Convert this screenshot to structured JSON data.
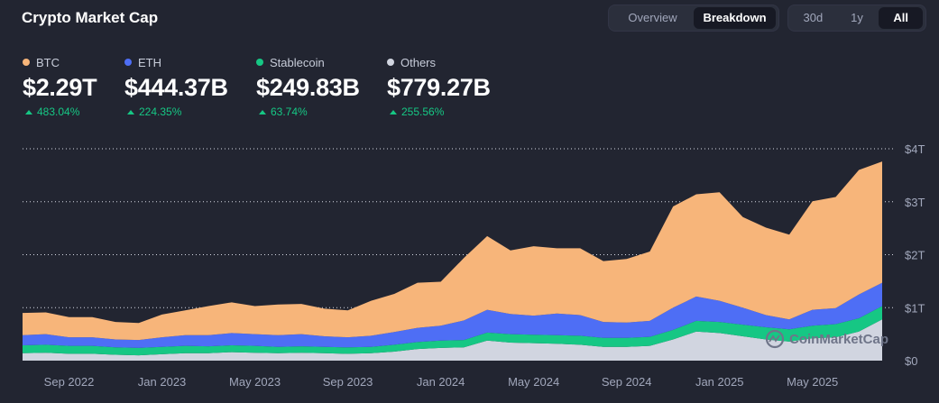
{
  "header": {
    "title": "Crypto Market Cap",
    "view_tabs": [
      {
        "label": "Overview",
        "active": false
      },
      {
        "label": "Breakdown",
        "active": true
      }
    ],
    "range_tabs": [
      {
        "label": "30d",
        "active": false
      },
      {
        "label": "1y",
        "active": false
      },
      {
        "label": "All",
        "active": true
      }
    ]
  },
  "stats": [
    {
      "name": "BTC",
      "value": "$2.29T",
      "change": "483.04%",
      "color": "#f7b57a"
    },
    {
      "name": "ETH",
      "value": "$444.37B",
      "change": "224.35%",
      "color": "#4e6ef5"
    },
    {
      "name": "Stablecoin",
      "value": "$249.83B",
      "change": "63.74%",
      "color": "#16c784"
    },
    {
      "name": "Others",
      "value": "$779.27B",
      "change": "255.56%",
      "color": "#d1d5e0"
    }
  ],
  "watermark": "CoinMarketCap",
  "chart_data": {
    "type": "area",
    "stacked": true,
    "x_ticks": [
      "Sep 2022",
      "Jan 2023",
      "May 2023",
      "Sep 2023",
      "Jan 2024",
      "May 2024",
      "Sep 2024",
      "Jan 2025",
      "May 2025"
    ],
    "y_ticks": [
      "$0",
      "$1T",
      "$2T",
      "$3T",
      "$4T"
    ],
    "ylim": [
      0,
      4
    ],
    "y_unit": "T",
    "grid": "horizontal-dotted",
    "x": [
      "2022-07",
      "2022-08",
      "2022-09",
      "2022-10",
      "2022-11",
      "2022-12",
      "2023-01",
      "2023-02",
      "2023-03",
      "2023-04",
      "2023-05",
      "2023-06",
      "2023-07",
      "2023-08",
      "2023-09",
      "2023-10",
      "2023-11",
      "2023-12",
      "2024-01",
      "2024-02",
      "2024-03",
      "2024-04",
      "2024-05",
      "2024-06",
      "2024-07",
      "2024-08",
      "2024-09",
      "2024-10",
      "2024-11",
      "2024-12",
      "2025-01",
      "2025-02",
      "2025-03",
      "2025-04",
      "2025-05",
      "2025-06",
      "2025-07",
      "2025-08"
    ],
    "series": [
      {
        "name": "Others",
        "color": "#d1d5e0",
        "values": [
          0.14,
          0.15,
          0.13,
          0.13,
          0.11,
          0.1,
          0.12,
          0.14,
          0.14,
          0.16,
          0.15,
          0.14,
          0.15,
          0.14,
          0.13,
          0.14,
          0.17,
          0.22,
          0.24,
          0.25,
          0.38,
          0.34,
          0.33,
          0.32,
          0.3,
          0.26,
          0.26,
          0.28,
          0.4,
          0.55,
          0.52,
          0.46,
          0.4,
          0.36,
          0.42,
          0.44,
          0.55,
          0.78
        ]
      },
      {
        "name": "Stablecoin",
        "color": "#16c784",
        "values": [
          0.15,
          0.15,
          0.15,
          0.15,
          0.14,
          0.14,
          0.14,
          0.14,
          0.13,
          0.13,
          0.13,
          0.12,
          0.12,
          0.12,
          0.12,
          0.12,
          0.13,
          0.13,
          0.14,
          0.14,
          0.15,
          0.16,
          0.16,
          0.16,
          0.17,
          0.17,
          0.17,
          0.17,
          0.18,
          0.2,
          0.21,
          0.22,
          0.23,
          0.23,
          0.24,
          0.25,
          0.25,
          0.25
        ]
      },
      {
        "name": "ETH",
        "color": "#4e6ef5",
        "values": [
          0.19,
          0.2,
          0.16,
          0.16,
          0.15,
          0.15,
          0.18,
          0.2,
          0.21,
          0.23,
          0.22,
          0.22,
          0.23,
          0.2,
          0.19,
          0.21,
          0.24,
          0.27,
          0.28,
          0.37,
          0.43,
          0.38,
          0.36,
          0.41,
          0.39,
          0.3,
          0.29,
          0.3,
          0.42,
          0.46,
          0.4,
          0.32,
          0.23,
          0.19,
          0.3,
          0.3,
          0.45,
          0.44
        ]
      },
      {
        "name": "BTC",
        "color": "#f7b57a",
        "values": [
          0.42,
          0.41,
          0.38,
          0.38,
          0.33,
          0.32,
          0.43,
          0.47,
          0.55,
          0.58,
          0.53,
          0.58,
          0.57,
          0.52,
          0.51,
          0.66,
          0.72,
          0.85,
          0.83,
          1.18,
          1.39,
          1.2,
          1.31,
          1.23,
          1.26,
          1.15,
          1.2,
          1.31,
          1.91,
          1.93,
          2.05,
          1.71,
          1.65,
          1.6,
          2.05,
          2.1,
          2.35,
          2.29
        ]
      }
    ]
  }
}
